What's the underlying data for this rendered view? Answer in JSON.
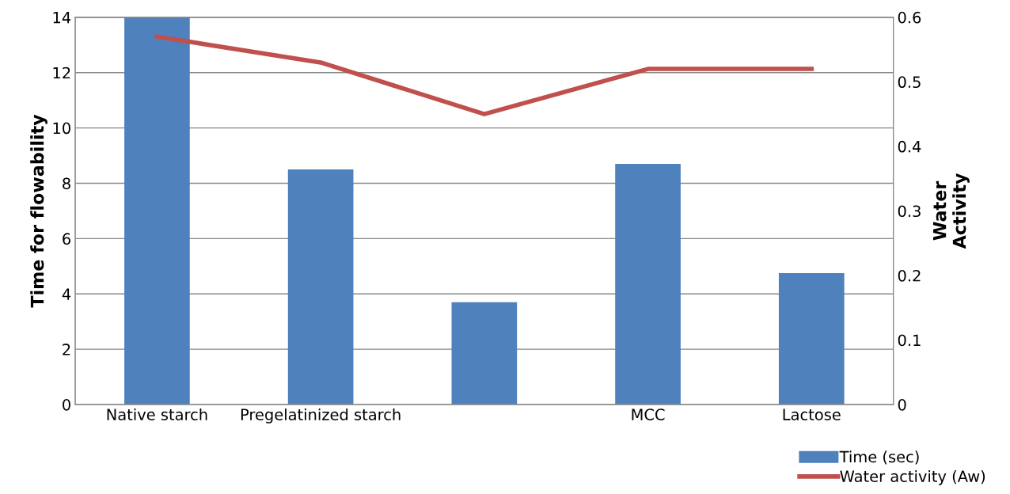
{
  "chart_data": {
    "type": "bar",
    "categories": [
      "Native starch",
      "Pregelatinized starch",
      null,
      "MCC",
      "Lactose"
    ],
    "series": [
      {
        "name": "Time (sec)",
        "color": "#4f81bd",
        "values": [
          14,
          8.5,
          3.7,
          8.7,
          4.75
        ]
      },
      {
        "name": "Water activity (Aw)",
        "type": "line",
        "axis": "y2",
        "color": "#c0504d",
        "values": [
          0.57,
          0.53,
          0.45,
          0.52,
          0.52
        ]
      }
    ],
    "ylabel": "Time for flowability",
    "y2label": "Water Activity",
    "ylim": [
      0,
      14
    ],
    "yticks": [
      0,
      2,
      4,
      6,
      8,
      10,
      12,
      14
    ],
    "y2lim": [
      0,
      0.6
    ],
    "y2ticks": [
      {
        "value": 0,
        "label": "0"
      },
      0.1,
      0.2,
      0.3,
      0.4,
      0.5,
      0.6
    ],
    "grid": "y",
    "legend": "bottom right",
    "marker": "none",
    "line_style": "solid"
  }
}
